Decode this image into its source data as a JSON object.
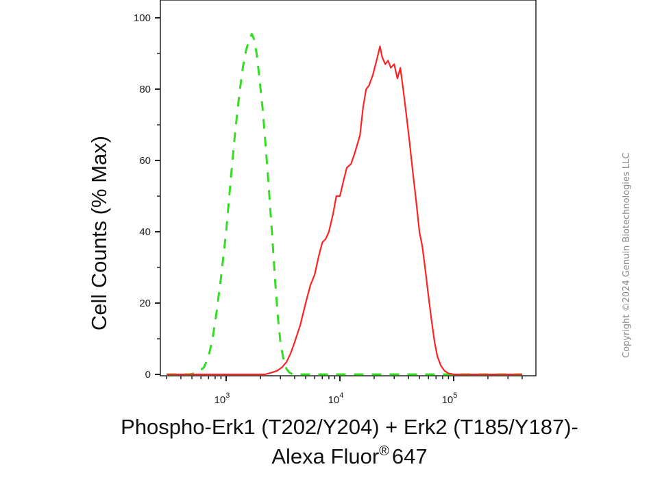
{
  "chart_data": {
    "type": "line",
    "title": "",
    "ylabel": "Cell Counts (% Max)",
    "xlabel": [
      "Phospho-Erk1 (T202/Y204) + Erk2 (T185/Y187)-",
      "Alexa Fluor",
      "®",
      "647"
    ],
    "x_scale": "log",
    "xlim": [
      300,
      400000
    ],
    "ylim": [
      0,
      100
    ],
    "y_ticks": [
      0,
      20,
      40,
      60,
      80,
      100
    ],
    "x_tick_labels": [
      {
        "value": 1000,
        "base": "10",
        "exp": "3"
      },
      {
        "value": 10000,
        "base": "10",
        "exp": "4"
      },
      {
        "value": 100000,
        "base": "10",
        "exp": "5"
      }
    ],
    "grid": false,
    "legend": "none",
    "series": [
      {
        "color": "#33dd22",
        "style": "dashed",
        "points": [
          [
            300,
            0
          ],
          [
            480,
            0
          ],
          [
            560,
            0.5
          ],
          [
            640,
            2
          ],
          [
            700,
            5
          ],
          [
            760,
            10
          ],
          [
            820,
            17
          ],
          [
            900,
            27
          ],
          [
            1000,
            40
          ],
          [
            1100,
            55
          ],
          [
            1200,
            68
          ],
          [
            1300,
            78
          ],
          [
            1400,
            86
          ],
          [
            1500,
            91
          ],
          [
            1600,
            94
          ],
          [
            1680,
            95.5
          ],
          [
            1760,
            94
          ],
          [
            1850,
            90
          ],
          [
            1950,
            84
          ],
          [
            2100,
            74
          ],
          [
            2250,
            62
          ],
          [
            2400,
            50
          ],
          [
            2550,
            38
          ],
          [
            2700,
            26
          ],
          [
            2850,
            16
          ],
          [
            3000,
            9
          ],
          [
            3200,
            4
          ],
          [
            3400,
            1.5
          ],
          [
            3600,
            0.5
          ],
          [
            3900,
            0
          ],
          [
            400000,
            0
          ]
        ]
      },
      {
        "color": "#ff2222",
        "style": "solid",
        "points": [
          [
            300,
            0
          ],
          [
            2200,
            0
          ],
          [
            2500,
            0.5
          ],
          [
            2800,
            1
          ],
          [
            3100,
            2
          ],
          [
            3400,
            3.5
          ],
          [
            3700,
            6
          ],
          [
            4000,
            9
          ],
          [
            4500,
            14
          ],
          [
            5000,
            20
          ],
          [
            5500,
            25
          ],
          [
            6000,
            28
          ],
          [
            6500,
            33
          ],
          [
            7000,
            37
          ],
          [
            7500,
            38
          ],
          [
            8000,
            40
          ],
          [
            8700,
            45
          ],
          [
            9300,
            50
          ],
          [
            10000,
            50
          ],
          [
            10700,
            54
          ],
          [
            11500,
            58
          ],
          [
            12500,
            59
          ],
          [
            13500,
            62
          ],
          [
            15000,
            67
          ],
          [
            16000,
            75
          ],
          [
            17000,
            80
          ],
          [
            18000,
            81
          ],
          [
            19500,
            84
          ],
          [
            21000,
            88
          ],
          [
            22500,
            92
          ],
          [
            23500,
            89
          ],
          [
            25000,
            87
          ],
          [
            26500,
            88
          ],
          [
            28000,
            86
          ],
          [
            30000,
            87
          ],
          [
            32000,
            83
          ],
          [
            34000,
            86
          ],
          [
            36000,
            80
          ],
          [
            38000,
            74
          ],
          [
            41000,
            65
          ],
          [
            44000,
            56
          ],
          [
            47000,
            48
          ],
          [
            50000,
            40
          ],
          [
            53000,
            36
          ],
          [
            56000,
            30
          ],
          [
            60000,
            22
          ],
          [
            64000,
            15
          ],
          [
            68000,
            9
          ],
          [
            72000,
            5
          ],
          [
            77000,
            2.5
          ],
          [
            83000,
            1
          ],
          [
            90000,
            0.3
          ],
          [
            100000,
            0
          ],
          [
            400000,
            0
          ]
        ]
      }
    ]
  },
  "watermark": "Copyright ©2024 Genuin Biotechnologies LLC"
}
